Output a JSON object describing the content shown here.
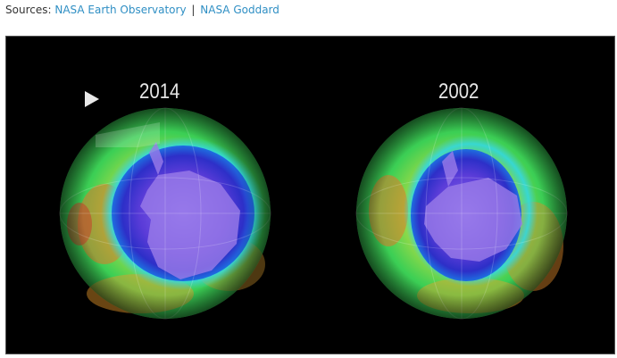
{
  "sources": {
    "label": "Sources:",
    "links": [
      {
        "text": "NASA Earth Observatory"
      },
      {
        "text": "NASA Goddard"
      }
    ],
    "separator": "|",
    "link_color": "#2f8fc4"
  },
  "video": {
    "play_icon": "play-icon",
    "panels": [
      {
        "year": "2014"
      },
      {
        "year": "2002"
      }
    ]
  }
}
